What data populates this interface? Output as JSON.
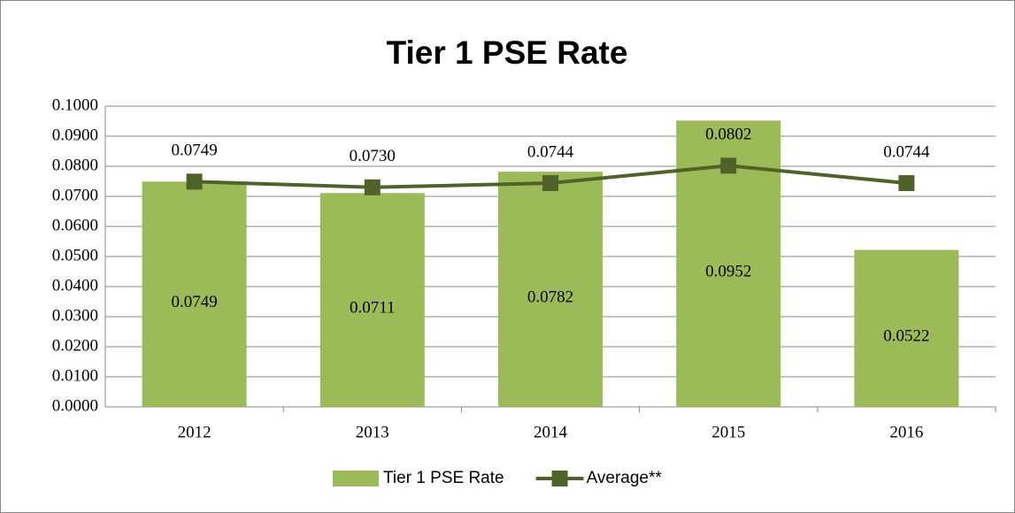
{
  "chart_data": {
    "type": "bar",
    "title": "Tier 1 PSE Rate",
    "categories": [
      "2012",
      "2013",
      "2014",
      "2015",
      "2016"
    ],
    "series": [
      {
        "name": "Tier 1 PSE Rate",
        "type": "bar",
        "color": "#9bbb59",
        "values": [
          0.0749,
          0.0711,
          0.0782,
          0.0952,
          0.0522
        ],
        "value_labels": [
          "0.0749",
          "0.0711",
          "0.0782",
          "0.0952",
          "0.0522"
        ]
      },
      {
        "name": "Average**",
        "type": "line",
        "color": "#4f6228",
        "values": [
          0.0749,
          0.073,
          0.0744,
          0.0802,
          0.0744
        ],
        "value_labels": [
          "0.0749",
          "0.0730",
          "0.0744",
          "0.0802",
          "0.0744"
        ]
      }
    ],
    "ylim": [
      0,
      0.1
    ],
    "yticks": [
      {
        "value": 0,
        "label": "0.0000"
      },
      {
        "value": 0.01,
        "label": "0.0100"
      },
      {
        "value": 0.02,
        "label": "0.0200"
      },
      {
        "value": 0.03,
        "label": "0.0300"
      },
      {
        "value": 0.04,
        "label": "0.0400"
      },
      {
        "value": 0.05,
        "label": "0.0500"
      },
      {
        "value": 0.06,
        "label": "0.0600"
      },
      {
        "value": 0.07,
        "label": "0.0700"
      },
      {
        "value": 0.08,
        "label": "0.0800"
      },
      {
        "value": 0.09,
        "label": "0.0900"
      },
      {
        "value": 0.1,
        "label": "0.1000"
      }
    ],
    "grid": true,
    "legend": "bottom"
  }
}
